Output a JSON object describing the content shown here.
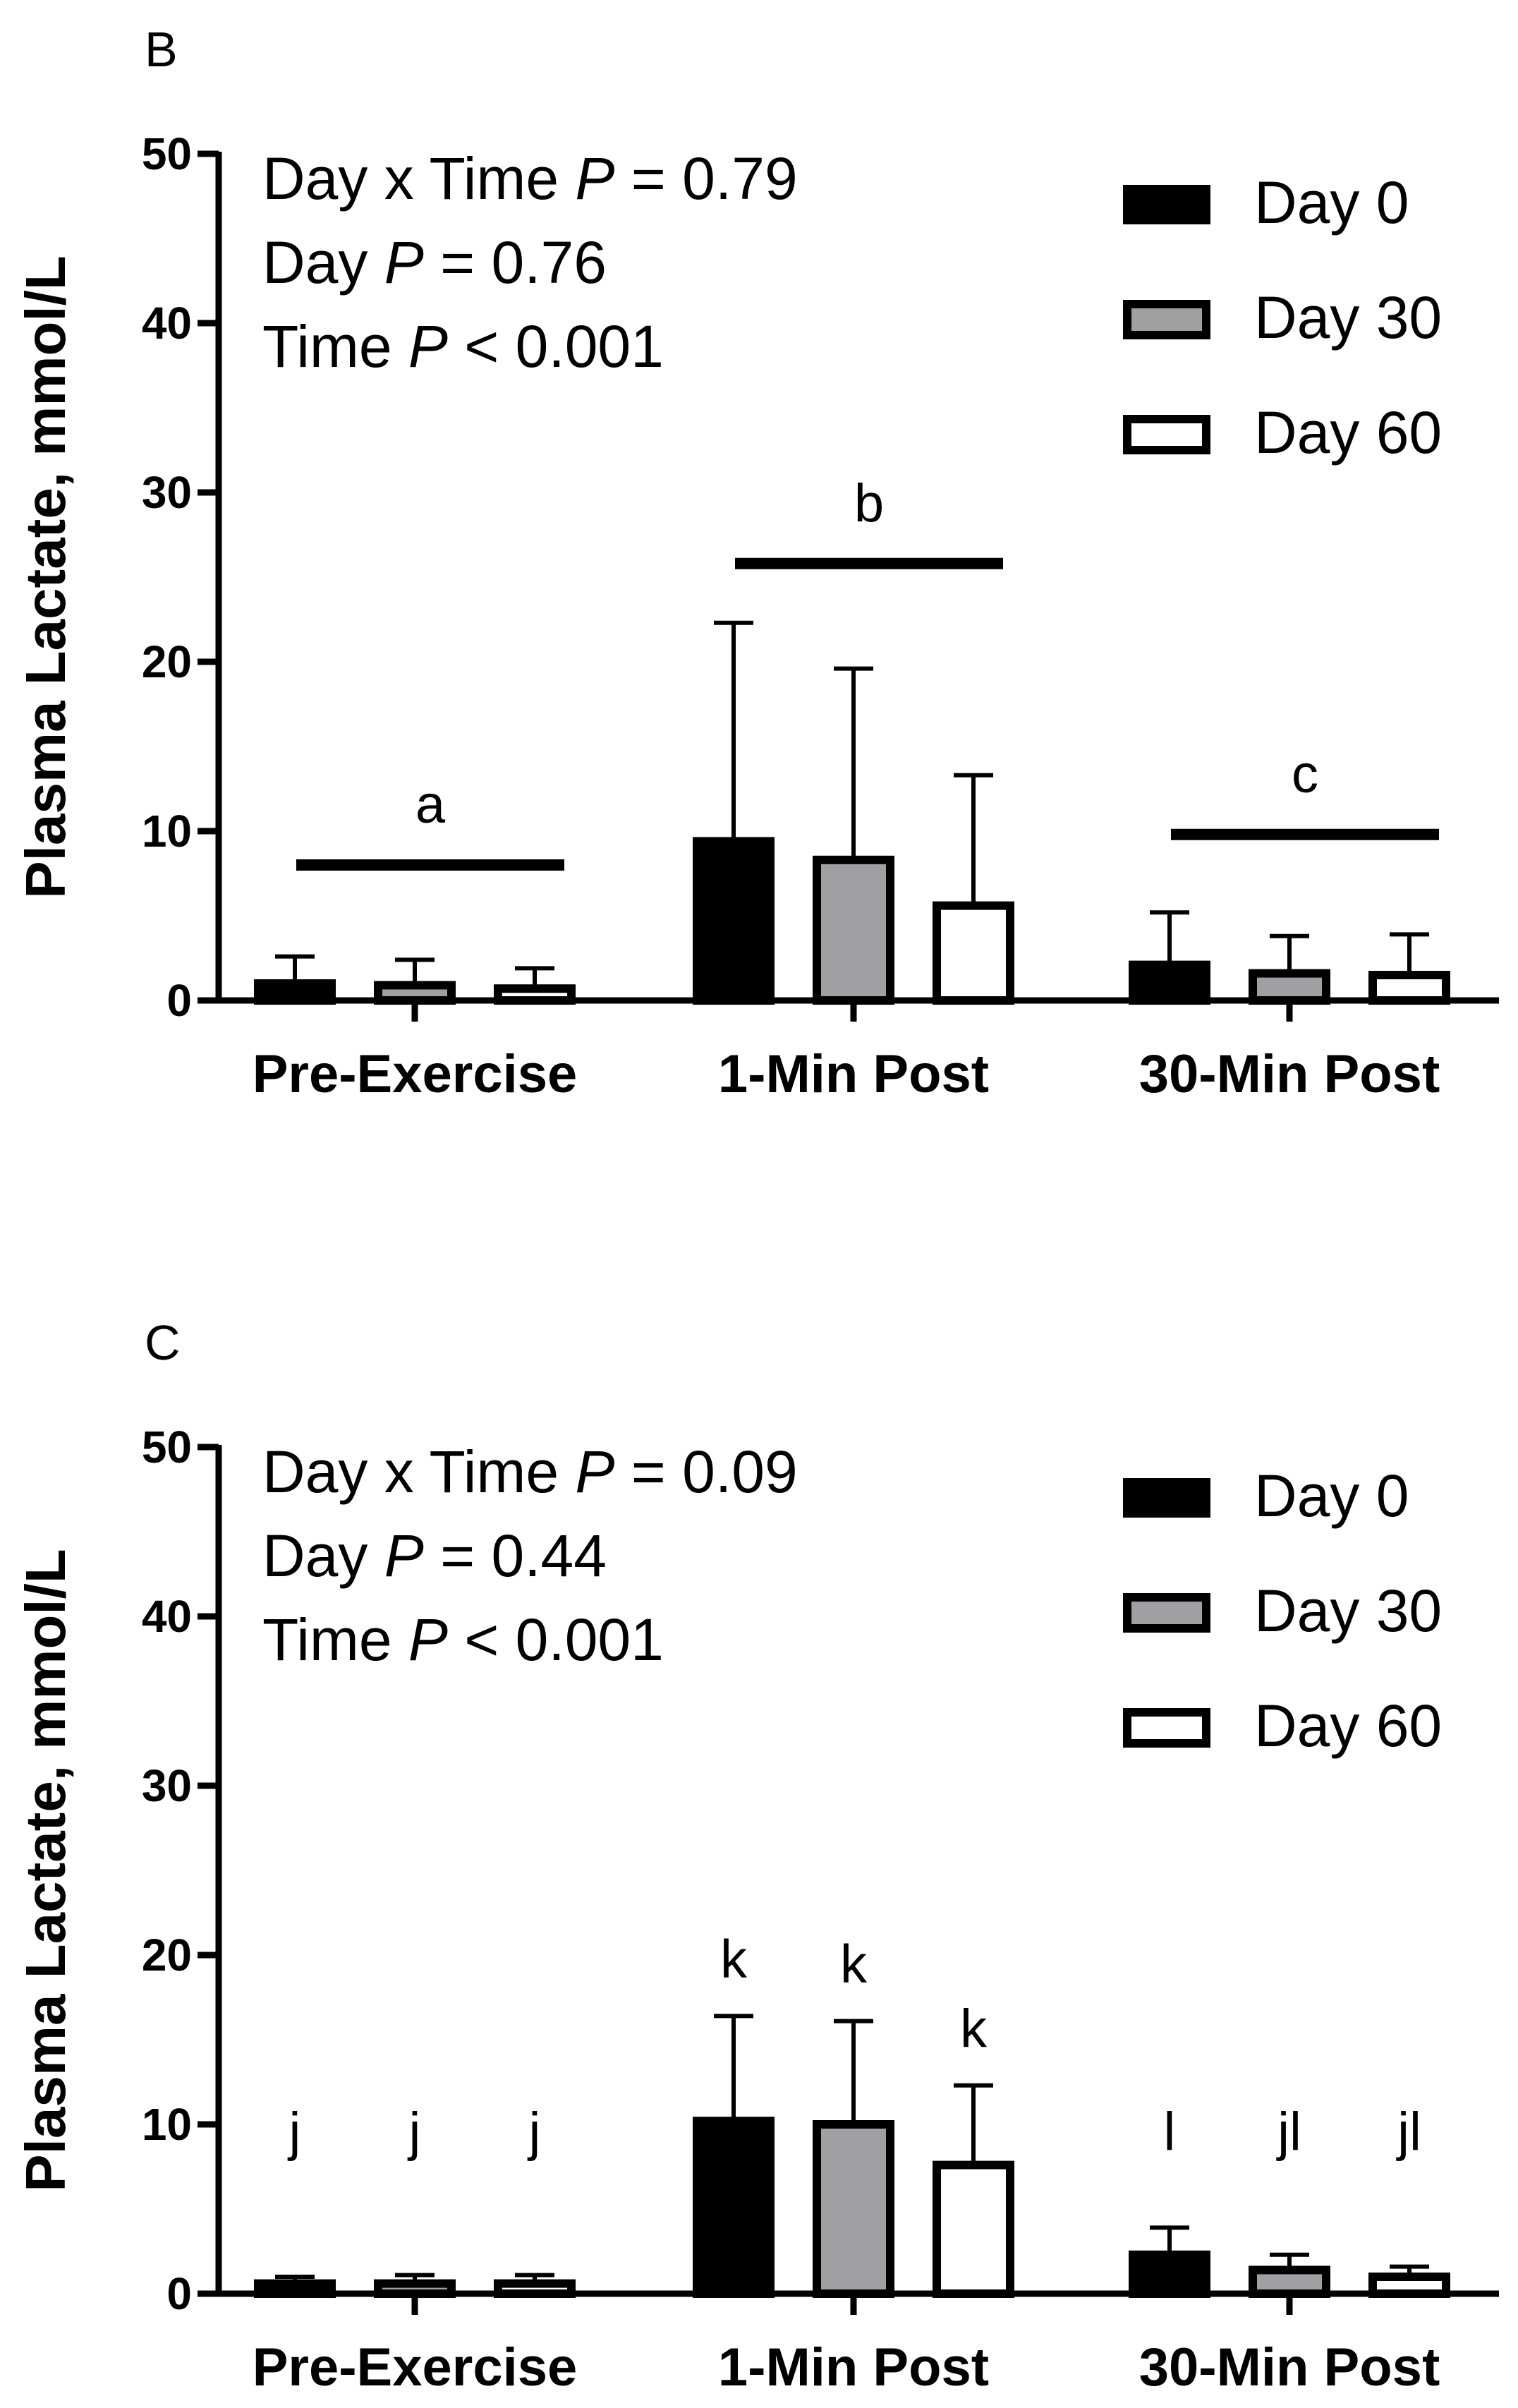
{
  "chart_data": [
    {
      "type": "bar",
      "panel_label": "B",
      "ylabel": "Plasma Lactate, mmol/L",
      "ylim": [
        0,
        50
      ],
      "yticks": [
        "0",
        "10",
        "20",
        "30",
        "40",
        "50"
      ],
      "categories": [
        "Pre-Exercise",
        "1-Min Post",
        "30-Min Post"
      ],
      "series": [
        {
          "name": "Day 0",
          "fill": "#000000",
          "values": [
            1.0,
            9.4,
            2.1
          ],
          "errors": [
            1.6,
            12.9,
            3.1
          ]
        },
        {
          "name": "Day 30",
          "fill": "#a0a0a3",
          "values": [
            0.9,
            8.3,
            1.6
          ],
          "errors": [
            1.5,
            11.3,
            2.2
          ]
        },
        {
          "name": "Day 60",
          "fill": "#ffffff",
          "values": [
            0.7,
            5.6,
            1.5
          ],
          "errors": [
            1.2,
            7.7,
            2.4
          ]
        }
      ],
      "stats": {
        "line1_prefix": "Day x  Time ",
        "line1_p": "P",
        "line1_value": " = 0.79",
        "line2_prefix": "Day ",
        "line2_p": "P",
        "line2_value": " = 0.76",
        "line3_prefix": "Time ",
        "line3_p": "P",
        "line3_value": " < 0.001"
      },
      "group_annotations": [
        {
          "category": 0,
          "text": "a",
          "y": 8.0
        },
        {
          "category": 1,
          "text": "b",
          "y": 25.8
        },
        {
          "category": 2,
          "text": "c",
          "y": 9.8
        }
      ],
      "bar_annotations": []
    },
    {
      "type": "bar",
      "panel_label": "C",
      "ylabel": "Plasma Lactate, mmol/L",
      "ylim": [
        0,
        50
      ],
      "yticks": [
        "0",
        "10",
        "20",
        "30",
        "40",
        "50"
      ],
      "categories": [
        "Pre-Exercise",
        "1-Min Post",
        "30-Min Post"
      ],
      "series": [
        {
          "name": "Day 0",
          "fill": "#000000",
          "values": [
            0.6,
            10.2,
            2.3
          ],
          "errors": [
            0.4,
            6.2,
            1.6
          ]
        },
        {
          "name": "Day 30",
          "fill": "#a0a0a3",
          "values": [
            0.6,
            10.0,
            1.4
          ],
          "errors": [
            0.5,
            6.1,
            0.9
          ]
        },
        {
          "name": "Day 60",
          "fill": "#ffffff",
          "values": [
            0.6,
            7.6,
            1.0
          ],
          "errors": [
            0.5,
            4.7,
            0.6
          ]
        }
      ],
      "stats": {
        "line1_prefix": "Day x  Time ",
        "line1_p": "P",
        "line1_value": " = 0.09",
        "line2_prefix": "Day ",
        "line2_p": "P",
        "line2_value": " = 0.44",
        "line3_prefix": "Time ",
        "line3_p": "P",
        "line3_value": " < 0.001"
      },
      "group_annotations": [],
      "bar_annotations": [
        {
          "category": 0,
          "series": 0,
          "text": "j"
        },
        {
          "category": 0,
          "series": 1,
          "text": "j"
        },
        {
          "category": 0,
          "series": 2,
          "text": "j"
        },
        {
          "category": 1,
          "series": 0,
          "text": "k"
        },
        {
          "category": 1,
          "series": 1,
          "text": "k"
        },
        {
          "category": 1,
          "series": 2,
          "text": "k"
        },
        {
          "category": 2,
          "series": 0,
          "text": "l"
        },
        {
          "category": 2,
          "series": 1,
          "text": "jl"
        },
        {
          "category": 2,
          "series": 2,
          "text": "jl"
        }
      ]
    }
  ]
}
